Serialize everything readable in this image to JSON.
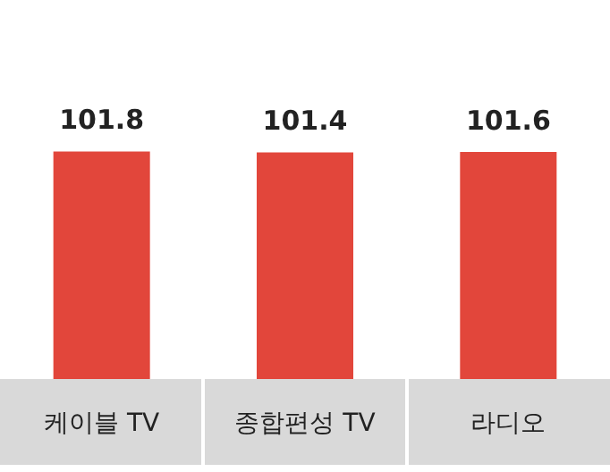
{
  "chart_data": {
    "type": "bar",
    "categories": [
      "케이블 TV",
      "종합편성 TV",
      "라디오"
    ],
    "values": [
      101.8,
      101.4,
      101.6
    ],
    "color": "#e2463b",
    "data_labels": true
  }
}
